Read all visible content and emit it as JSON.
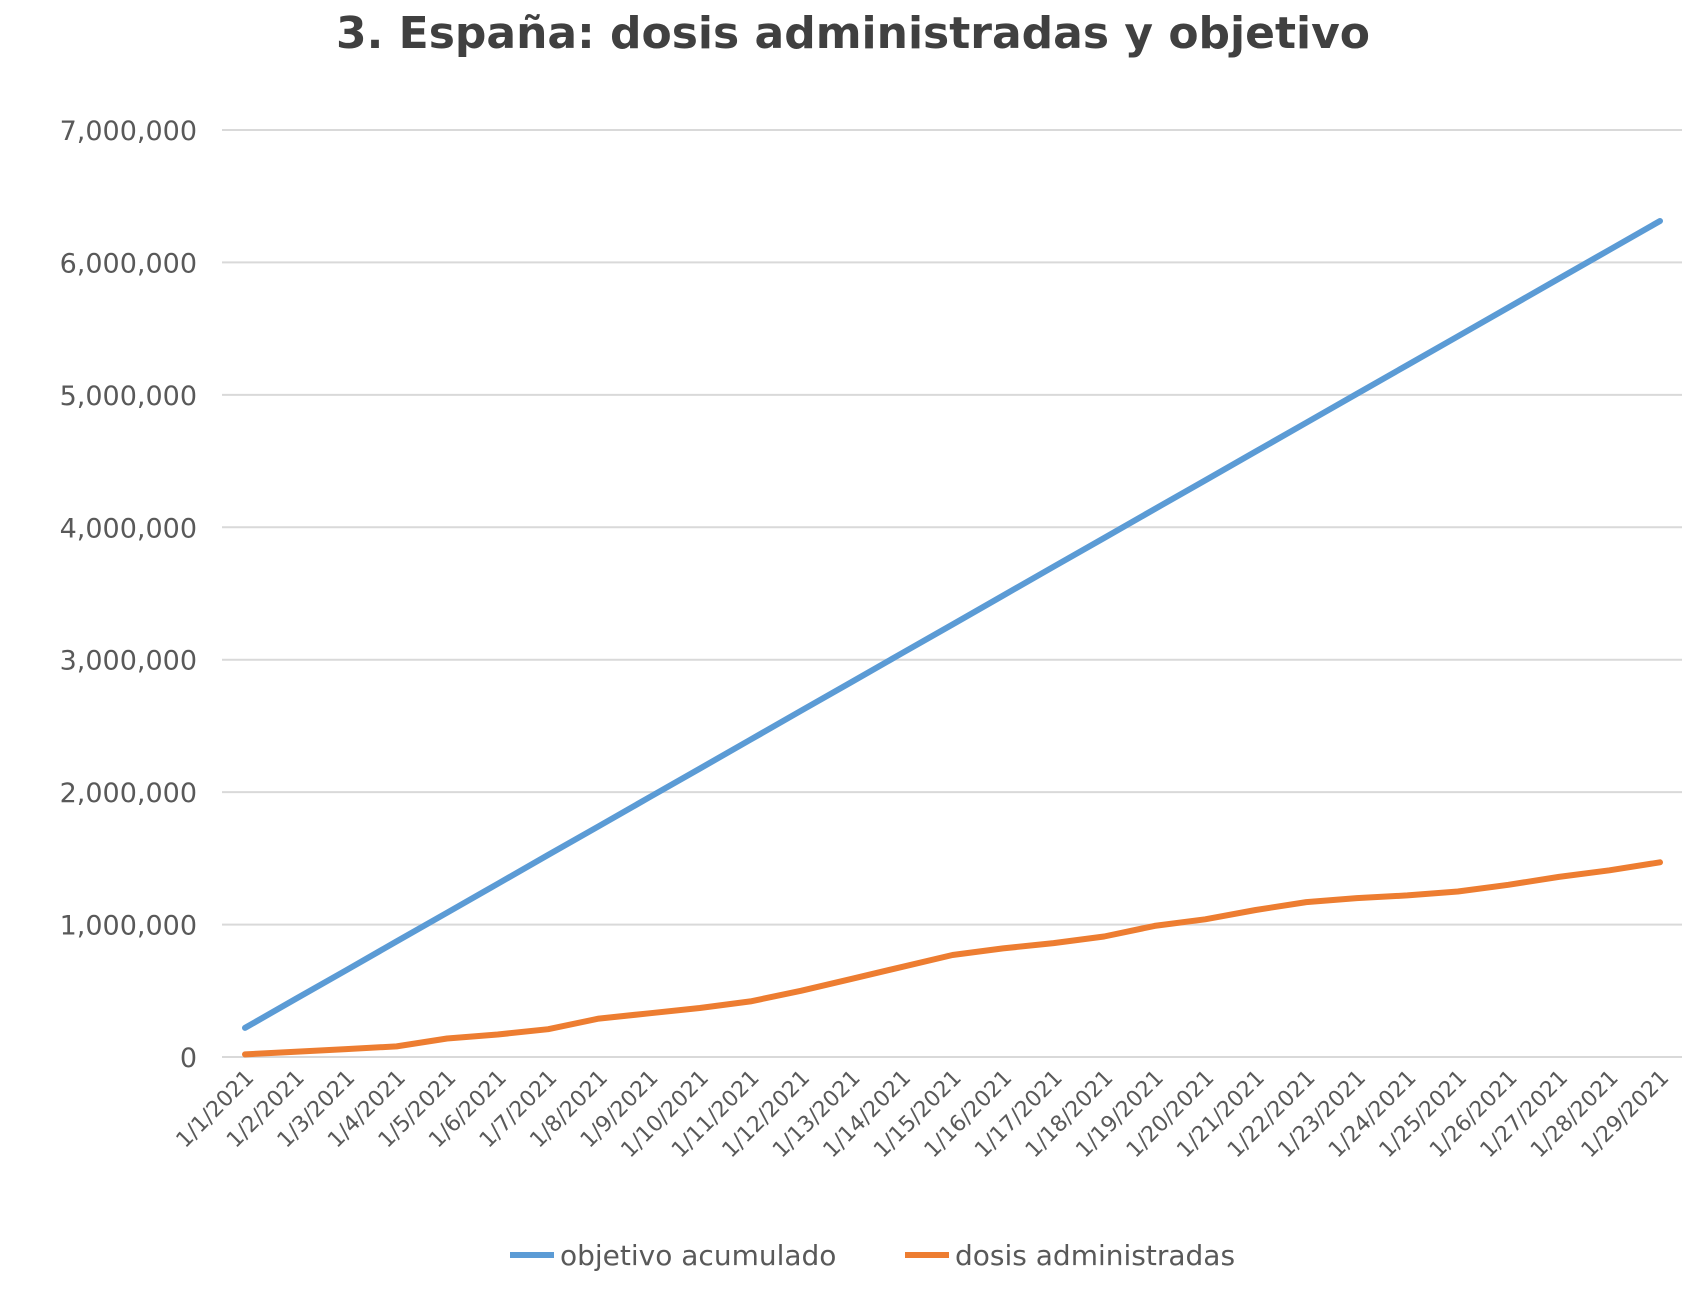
{
  "chart_data": {
    "type": "line",
    "title": "3. España: dosis administradas y objetivo",
    "xlabel": "",
    "ylabel": "",
    "ylim": [
      0,
      7000000
    ],
    "yticks": [
      0,
      1000000,
      2000000,
      3000000,
      4000000,
      5000000,
      6000000,
      7000000
    ],
    "ytick_labels": [
      "0",
      "1,000,000",
      "2,000,000",
      "3,000,000",
      "4,000,000",
      "5,000,000",
      "6,000,000",
      "7,000,000"
    ],
    "grid": "horizontal",
    "legend_position": "bottom",
    "x": [
      "1/1/2021",
      "1/2/2021",
      "1/3/2021",
      "1/4/2021",
      "1/5/2021",
      "1/6/2021",
      "1/7/2021",
      "1/8/2021",
      "1/9/2021",
      "1/10/2021",
      "1/11/2021",
      "1/12/2021",
      "1/13/2021",
      "1/14/2021",
      "1/15/2021",
      "1/16/2021",
      "1/17/2021",
      "1/18/2021",
      "1/19/2021",
      "1/20/2021",
      "1/21/2021",
      "1/22/2021",
      "1/23/2021",
      "1/24/2021",
      "1/25/2021",
      "1/26/2021",
      "1/27/2021",
      "1/28/2021",
      "1/29/2021"
    ],
    "series": [
      {
        "name": "objetivo acumulado",
        "color": "#5B9BD5",
        "values": [
          220000,
          438000,
          655000,
          873000,
          1090000,
          1308000,
          1526000,
          1743000,
          1961000,
          2178000,
          2396000,
          2614000,
          2831000,
          3049000,
          3266000,
          3484000,
          3702000,
          3919000,
          4137000,
          4354000,
          4572000,
          4790000,
          5007000,
          5225000,
          5442000,
          5660000,
          5878000,
          6095000,
          6313000
        ]
      },
      {
        "name": "dosis administradas",
        "color": "#ED7D31",
        "values": [
          20000,
          40000,
          60000,
          80000,
          140000,
          170000,
          210000,
          290000,
          330000,
          370000,
          420000,
          500000,
          590000,
          680000,
          770000,
          820000,
          860000,
          910000,
          990000,
          1040000,
          1110000,
          1170000,
          1200000,
          1220000,
          1250000,
          1300000,
          1360000,
          1410000,
          1470000
        ]
      }
    ]
  }
}
